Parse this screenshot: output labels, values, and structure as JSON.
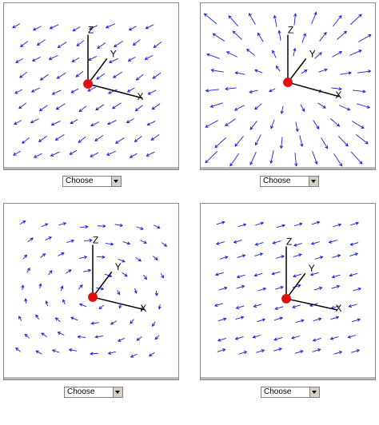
{
  "panels": [
    {
      "field": "inward-left",
      "axis_labels": {
        "x": "X",
        "y": "Y",
        "z": "Z"
      },
      "dropdown_value": "Choose"
    },
    {
      "field": "radial-out",
      "axis_labels": {
        "x": "X",
        "y": "Y",
        "z": "Z"
      },
      "dropdown_value": "Choose"
    },
    {
      "field": "swirl",
      "axis_labels": {
        "x": "X",
        "y": "Y",
        "z": "Z"
      },
      "dropdown_value": "Choose"
    },
    {
      "field": "uniform-left",
      "axis_labels": {
        "x": "X",
        "y": "Y",
        "z": "Z"
      },
      "dropdown_value": "Choose"
    }
  ],
  "colors": {
    "vector": "#1a1ad6",
    "axis": "#000000",
    "origin": "#e01010",
    "frame": "#8a8a8a"
  },
  "icons": {
    "dropdown": "chevron-down-icon",
    "origin": "origin-dot-icon"
  }
}
